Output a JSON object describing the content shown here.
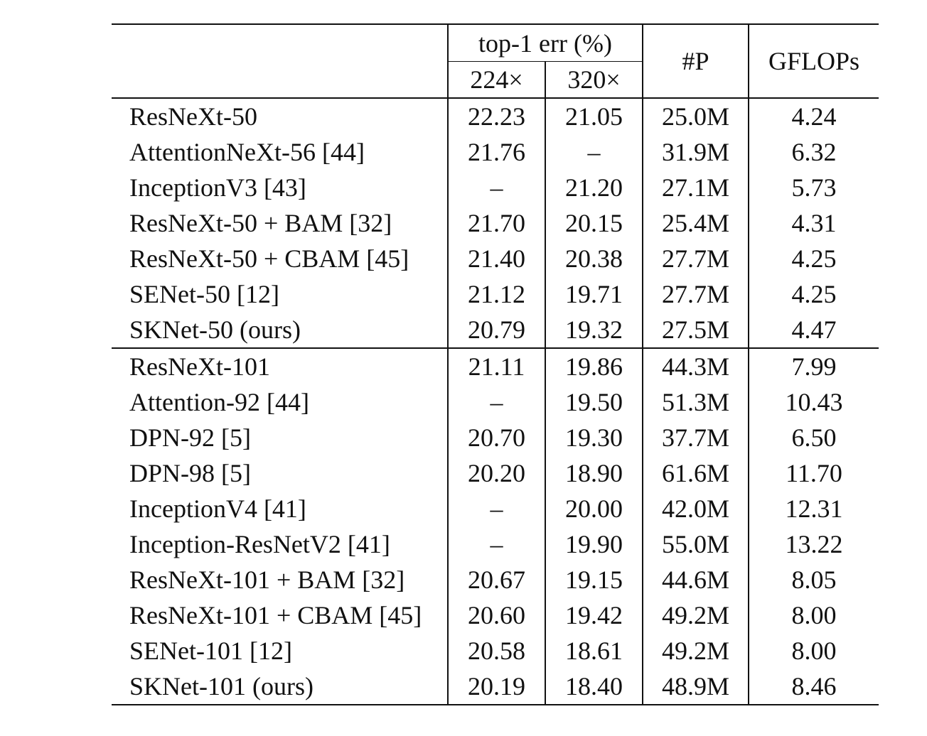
{
  "header": {
    "metric_group": "top-1 err (%)",
    "res_224": "224×",
    "res_320": "320×",
    "params": "#P",
    "flops": "GFLOPs"
  },
  "groups": [
    {
      "rows": [
        {
          "model": "ResNeXt-50",
          "e224": "22.23",
          "e320": "21.05",
          "params": "25.0M",
          "flops": "4.24"
        },
        {
          "model": "AttentionNeXt-56 [44]",
          "e224": "21.76",
          "e320": "–",
          "params": "31.9M",
          "flops": "6.32"
        },
        {
          "model": "InceptionV3 [43]",
          "e224": "–",
          "e320": "21.20",
          "params": "27.1M",
          "flops": "5.73"
        },
        {
          "model": "ResNeXt-50 + BAM [32]",
          "e224": "21.70",
          "e320": "20.15",
          "params": "25.4M",
          "flops": "4.31"
        },
        {
          "model": "ResNeXt-50 + CBAM [45]",
          "e224": "21.40",
          "e320": "20.38",
          "params": "27.7M",
          "flops": "4.25"
        },
        {
          "model": "SENet-50 [12]",
          "e224": "21.12",
          "e320": "19.71",
          "params": "27.7M",
          "flops": "4.25"
        },
        {
          "model": "SKNet-50 (ours)",
          "e224": "20.79",
          "e320": "19.32",
          "params": "27.5M",
          "flops": "4.47",
          "bold_errors": true
        }
      ]
    },
    {
      "rows": [
        {
          "model": "ResNeXt-101",
          "e224": "21.11",
          "e320": "19.86",
          "params": "44.3M",
          "flops": "7.99"
        },
        {
          "model": "Attention-92 [44]",
          "e224": "–",
          "e320": "19.50",
          "params": "51.3M",
          "flops": "10.43"
        },
        {
          "model": "DPN-92 [5]",
          "e224": "20.70",
          "e320": "19.30",
          "params": "37.7M",
          "flops": "6.50"
        },
        {
          "model": "DPN-98 [5]",
          "e224": "20.20",
          "e320": "18.90",
          "params": "61.6M",
          "flops": "11.70"
        },
        {
          "model": "InceptionV4 [41]",
          "e224": "–",
          "e320": "20.00",
          "params": "42.0M",
          "flops": "12.31"
        },
        {
          "model": "Inception-ResNetV2 [41]",
          "e224": "–",
          "e320": "19.90",
          "params": "55.0M",
          "flops": "13.22"
        },
        {
          "model": "ResNeXt-101 + BAM [32]",
          "e224": "20.67",
          "e320": "19.15",
          "params": "44.6M",
          "flops": "8.05"
        },
        {
          "model": "ResNeXt-101 + CBAM [45]",
          "e224": "20.60",
          "e320": "19.42",
          "params": "49.2M",
          "flops": "8.00"
        },
        {
          "model": "SENet-101 [12]",
          "e224": "20.58",
          "e320": "18.61",
          "params": "49.2M",
          "flops": "8.00"
        },
        {
          "model": "SKNet-101 (ours)",
          "e224": "20.19",
          "e320": "18.40",
          "params": "48.9M",
          "flops": "8.46",
          "bold_errors": true
        }
      ]
    }
  ]
}
